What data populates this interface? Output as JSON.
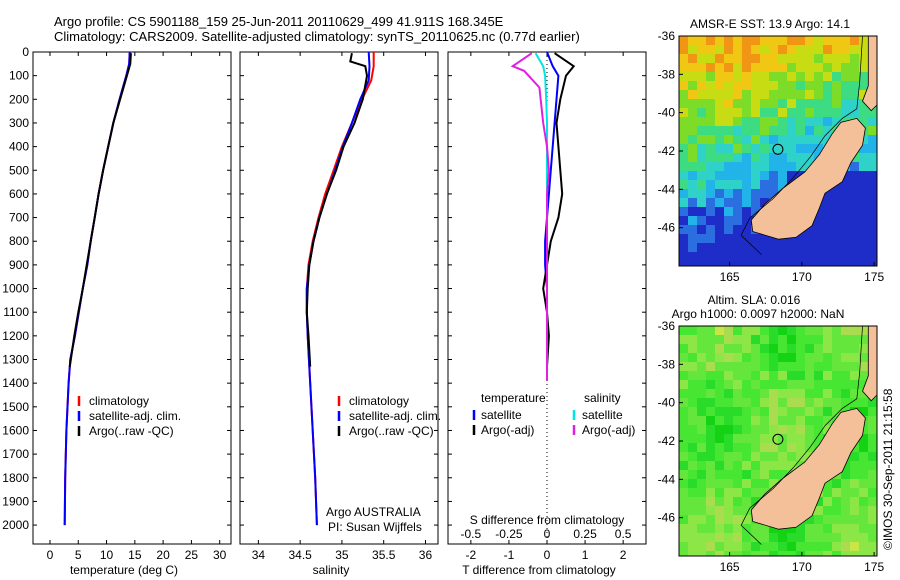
{
  "header": {
    "line1": "Argo profile: CS 5901188_159 25-Jun-2011 20110629_499 41.911S 168.345E",
    "line2": "Climatology: CARS2009. Satellite-adjusted climatology: synTS_20110625.nc (0.77d earlier)"
  },
  "colors": {
    "climatology": "#ff0000",
    "satellite": "#0000ff",
    "argo": "#000000",
    "sal_satellite": "#00e5e5",
    "sal_argo": "#e020e0",
    "land": "#f4c09a"
  },
  "chart_data": [
    {
      "type": "line",
      "id": "temperature",
      "xlabel": "temperature (deg C)",
      "ylabel": "",
      "xlim": [
        -3,
        32
      ],
      "ylim": [
        0,
        2080
      ],
      "xticks": [
        0,
        5,
        10,
        15,
        20,
        25,
        30
      ],
      "yticks": [
        0,
        100,
        200,
        300,
        400,
        500,
        600,
        700,
        800,
        900,
        1000,
        1100,
        1200,
        1300,
        1400,
        1500,
        1600,
        1700,
        1800,
        1900,
        2000
      ],
      "legend": [
        "climatology",
        "satellite-adj. clim.",
        "Argo(..raw -QC)"
      ],
      "series": [
        {
          "name": "climatology",
          "color": "#ff0000",
          "x": [
            14.1,
            14.0,
            13.5,
            12.3,
            11.2,
            10.3,
            9.4,
            8.6,
            7.9,
            7.2,
            6.6,
            5.8,
            5.1,
            4.4,
            3.6,
            3.3,
            3.1,
            2.9,
            2.8,
            2.7,
            2.6
          ],
          "y": [
            0,
            50,
            100,
            200,
            300,
            400,
            500,
            600,
            700,
            800,
            900,
            1000,
            1100,
            1200,
            1300,
            1400,
            1500,
            1600,
            1700,
            1800,
            2000
          ]
        },
        {
          "name": "satellite-adj. clim.",
          "color": "#0000ff",
          "x": [
            14.1,
            14.0,
            13.5,
            12.3,
            11.2,
            10.3,
            9.4,
            8.6,
            7.9,
            7.2,
            6.6,
            5.8,
            5.1,
            4.4,
            3.6,
            3.3,
            3.1,
            2.9,
            2.8,
            2.7,
            2.6
          ],
          "y": [
            0,
            50,
            100,
            200,
            300,
            400,
            500,
            600,
            700,
            800,
            900,
            1000,
            1100,
            1200,
            1300,
            1400,
            1500,
            1600,
            1700,
            1800,
            2000
          ]
        },
        {
          "name": "Argo(..raw -QC)",
          "color": "#000000",
          "x": [
            14.3,
            14.2,
            13.6,
            12.4,
            11.2,
            10.3,
            9.4,
            8.6,
            7.9,
            7.2,
            6.5,
            5.8,
            5.0,
            4.3,
            3.5
          ],
          "y": [
            5,
            50,
            100,
            200,
            300,
            400,
            500,
            600,
            700,
            800,
            900,
            1000,
            1100,
            1200,
            1330
          ]
        }
      ]
    },
    {
      "type": "line",
      "id": "salinity",
      "xlabel": "salinity",
      "ylabel": "",
      "xlim": [
        33.78,
        36.15
      ],
      "ylim": [
        0,
        2080
      ],
      "xticks": [
        34,
        34.5,
        35,
        35.5,
        36
      ],
      "xticklabels": [
        "34",
        "34.5",
        "35",
        "35.5",
        "36"
      ],
      "yticks": [
        0,
        100,
        200,
        300,
        400,
        500,
        600,
        700,
        800,
        900,
        1000,
        1100,
        1200,
        1300,
        1400,
        1500,
        1600,
        1700,
        1800,
        1900,
        2000
      ],
      "legend": [
        "climatology",
        "satellite-adj. clim.",
        "Argo(..raw -QC)"
      ],
      "series": [
        {
          "name": "climatology",
          "color": "#ff0000",
          "x": [
            35.38,
            35.38,
            35.35,
            35.24,
            35.12,
            35.0,
            34.9,
            34.8,
            34.72,
            34.65,
            34.6,
            34.58,
            34.58,
            34.59,
            34.62,
            34.65,
            34.68,
            34.7
          ],
          "y": [
            0,
            60,
            120,
            200,
            300,
            400,
            500,
            600,
            700,
            800,
            900,
            1000,
            1100,
            1200,
            1400,
            1600,
            1800,
            2000
          ]
        },
        {
          "name": "satellite-adj. clim.",
          "color": "#0000ff",
          "x": [
            35.32,
            35.33,
            35.32,
            35.22,
            35.12,
            35.01,
            34.92,
            34.82,
            34.73,
            34.66,
            34.61,
            34.58,
            34.58,
            34.59,
            34.62,
            34.65,
            34.68,
            34.7
          ],
          "y": [
            0,
            60,
            120,
            200,
            300,
            400,
            500,
            600,
            700,
            800,
            900,
            1000,
            1100,
            1200,
            1400,
            1600,
            1800,
            2000
          ]
        },
        {
          "name": "Argo(..raw -QC)",
          "color": "#000000",
          "x": [
            35.12,
            35.1,
            35.28,
            35.3,
            35.25,
            35.15,
            35.02,
            34.93,
            34.82,
            34.73,
            34.66,
            34.61,
            34.59,
            34.58,
            34.6,
            34.62
          ],
          "y": [
            5,
            40,
            60,
            100,
            200,
            300,
            400,
            500,
            600,
            700,
            800,
            900,
            1000,
            1100,
            1200,
            1330
          ]
        }
      ]
    },
    {
      "type": "line",
      "id": "difference",
      "xlabel": "T difference from climatology",
      "xlabel_top": "S difference from climatology",
      "xlim": [
        -2.6,
        2.6
      ],
      "ylim": [
        0,
        2080
      ],
      "xticks": [
        -2,
        -1,
        0,
        1,
        2
      ],
      "xticks_S": [
        -0.5,
        -0.25,
        0,
        0.25,
        0.5
      ],
      "xticklabels_S": [
        "-0.5",
        "-0.25",
        "0",
        "0.25",
        "0.5"
      ],
      "yticks": [
        0,
        100,
        200,
        300,
        400,
        500,
        600,
        700,
        800,
        900,
        1000,
        1100,
        1200,
        1300,
        1400,
        1500,
        1600,
        1700,
        1800,
        1900,
        2000
      ],
      "legend_temperature_title": "temperature",
      "legend_salinity_title": "salinity",
      "legend_temperature": [
        "satellite",
        "Argo(-adj)"
      ],
      "legend_salinity": [
        "satellite",
        "Argo(-adj)"
      ],
      "series": [
        {
          "name": "T satellite",
          "color": "#0000ff",
          "x": [
            0.0,
            0.15,
            0.3,
            0.25,
            0.2,
            0.15,
            0.1,
            0.05,
            0.0,
            -0.05,
            -0.05,
            0.0,
            0.0,
            0.0,
            0.0
          ],
          "y": [
            0,
            60,
            100,
            200,
            300,
            400,
            500,
            600,
            700,
            800,
            900,
            1000,
            1100,
            1200,
            1330
          ]
        },
        {
          "name": "T Argo(-adj)",
          "color": "#000000",
          "x": [
            0.2,
            0.7,
            0.5,
            0.35,
            0.25,
            0.3,
            0.35,
            0.4,
            0.3,
            0.1,
            0.0,
            -0.1,
            0.0,
            0.05,
            0.0
          ],
          "y": [
            5,
            60,
            100,
            200,
            300,
            400,
            500,
            600,
            700,
            800,
            900,
            1000,
            1100,
            1200,
            1330
          ]
        },
        {
          "name": "S satellite",
          "color": "#00e5e5",
          "x": [
            -0.3,
            -0.1,
            -0.05,
            -0.02,
            0.0,
            0.0,
            0.0,
            0.0,
            0.0,
            0.0,
            0.0,
            0.0,
            0.0,
            0.0,
            0.0
          ],
          "y": [
            5,
            60,
            100,
            200,
            300,
            400,
            500,
            600,
            700,
            800,
            900,
            1000,
            1100,
            1200,
            1390
          ]
        },
        {
          "name": "S Argo(-adj)",
          "color": "#e020e0",
          "x": [
            -0.4,
            -0.9,
            -0.6,
            -0.2,
            -0.1,
            0.0,
            0.05,
            0.0,
            0.0,
            0.0,
            0.0,
            0.0,
            0.0,
            0.0,
            0.0
          ],
          "y": [
            5,
            60,
            80,
            150,
            300,
            400,
            500,
            600,
            700,
            800,
            900,
            1000,
            1100,
            1200,
            1390
          ]
        }
      ]
    },
    {
      "type": "heatmap",
      "id": "map_sst",
      "title": "AMSR-E SST: 13.9 Argo: 14.1",
      "xticks": [
        165,
        170,
        175
      ],
      "yticks": [
        -36,
        -38,
        -40,
        -42,
        -44,
        -46
      ],
      "xlim": [
        161.5,
        175.2
      ],
      "ylim": [
        -48,
        -36
      ],
      "marker": [
        168.345,
        -41.911
      ]
    },
    {
      "type": "heatmap",
      "id": "map_sla",
      "title_line1": "Altim. SLA: 0.016",
      "title_line2": "Argo h1000: 0.0097 h2000: NaN",
      "xticks": [
        165,
        170,
        175
      ],
      "yticks": [
        -36,
        -38,
        -40,
        -42,
        -44,
        -46
      ],
      "xlim": [
        161.5,
        175.2
      ],
      "ylim": [
        -48,
        -36
      ],
      "marker": [
        168.345,
        -41.911
      ]
    }
  ],
  "footer": {
    "agency": "Argo AUSTRALIA",
    "pi": "PI: Susan Wijffels",
    "stamp": "©IMOS 30-Sep-2011 21:15:58"
  }
}
